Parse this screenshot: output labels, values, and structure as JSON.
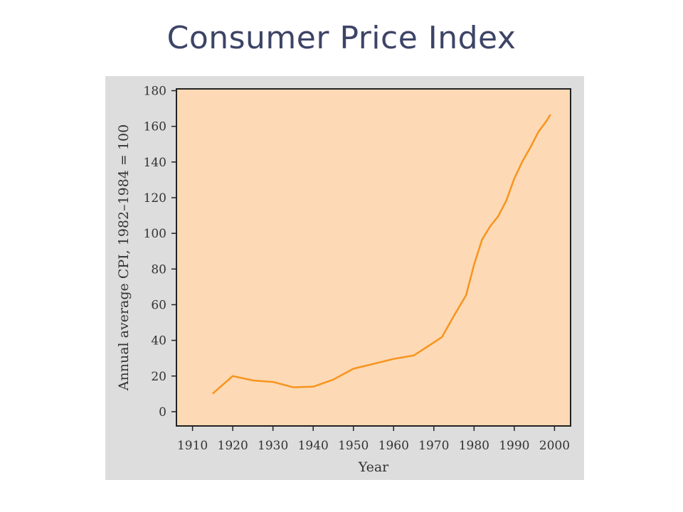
{
  "slide": {
    "title": "Consumer Price Index"
  },
  "colors": {
    "plot_bg": "#fdd9b5",
    "line": "#f7941d",
    "panel_bg": "#dddddd",
    "frame": "#222222"
  },
  "chart_data": {
    "type": "line",
    "title": "",
    "xlabel": "Year",
    "ylabel": "Annual average CPI, 1982–1984 = 100",
    "xlim": [
      1906,
      2004
    ],
    "ylim": [
      -8,
      181
    ],
    "xticks": [
      1910,
      1920,
      1930,
      1940,
      1950,
      1960,
      1970,
      1980,
      1990,
      2000
    ],
    "yticks": [
      0,
      20,
      40,
      60,
      80,
      100,
      120,
      140,
      160,
      180
    ],
    "grid": false,
    "legend": "none",
    "series": [
      {
        "x": [
          1915,
          1920,
          1925,
          1930,
          1935,
          1940,
          1945,
          1950,
          1955,
          1960,
          1965,
          1970,
          1972,
          1975,
          1978,
          1980,
          1982,
          1984,
          1986,
          1988,
          1990,
          1992,
          1994,
          1996,
          1998,
          1999
        ],
        "values": [
          10.1,
          20.0,
          17.5,
          16.7,
          13.7,
          14.0,
          18.0,
          24.1,
          26.8,
          29.6,
          31.5,
          38.8,
          41.8,
          53.8,
          65.2,
          82.4,
          96.5,
          103.9,
          109.6,
          118.3,
          130.7,
          140.3,
          148.2,
          156.9,
          163.0,
          166.6
        ]
      }
    ]
  }
}
